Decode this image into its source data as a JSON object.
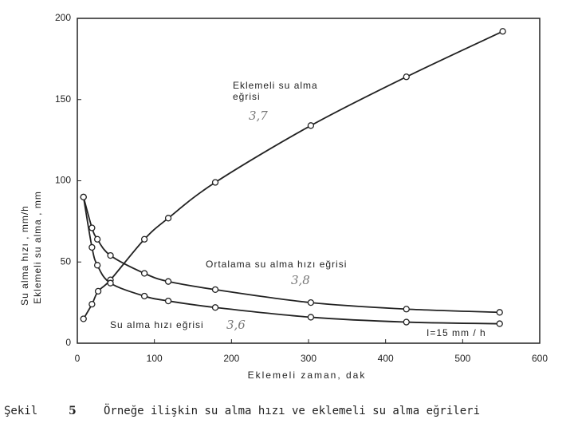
{
  "chart_data": {
    "type": "line",
    "xlabel": "Eklemeli zaman, dak",
    "ylabel": [
      "Su alma hızı , mm/h",
      "Eklemeli su alma , mm"
    ],
    "xlim": [
      0,
      600
    ],
    "xticks": [
      0,
      100,
      200,
      300,
      400,
      500,
      600
    ],
    "ylim": [
      0,
      200
    ],
    "yticks": [
      0,
      50,
      100,
      150,
      200
    ],
    "series": [
      {
        "name": "Eklemeli su alma eğrisi",
        "color": "#222222",
        "x": [
          8,
          19,
          27,
          43,
          87,
          118,
          179,
          303,
          427,
          552
        ],
        "values": [
          15,
          24,
          32,
          39,
          64,
          77,
          99,
          134,
          164,
          192
        ]
      },
      {
        "name": "Ortalama su alma hızı eğrisi",
        "color": "#222222",
        "x": [
          8,
          19,
          26,
          43,
          87,
          118,
          179,
          303,
          427,
          548
        ],
        "values": [
          90,
          71,
          64,
          54,
          43,
          38,
          33,
          25,
          21,
          19
        ]
      },
      {
        "name": "Su alma hızı eğrisi",
        "color": "#222222",
        "x": [
          8,
          19,
          26,
          43,
          87,
          118,
          179,
          303,
          427,
          548
        ],
        "values": [
          90,
          59,
          48,
          37,
          29,
          26,
          22,
          16,
          13,
          12
        ]
      }
    ],
    "annotations": [
      "I=15 mm / h",
      "3,7",
      "3,8",
      "3,6"
    ],
    "caption": {
      "label": "Şekil",
      "number": "5",
      "text": "Örneğe ilişkin su alma hızı ve eklemeli su alma eğrileri"
    }
  }
}
